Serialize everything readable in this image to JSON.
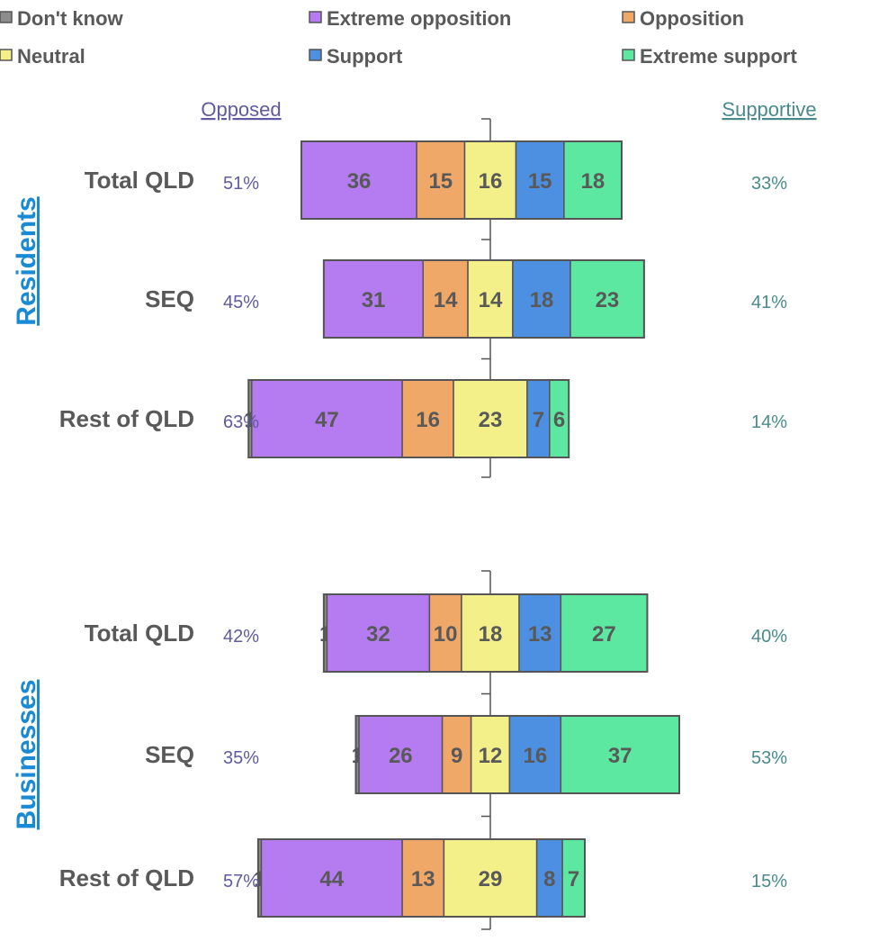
{
  "chart_data": {
    "type": "bar",
    "subtype": "diverging-stacked-horizontal",
    "legend": {
      "placement": "top",
      "entries": [
        {
          "key": "dont_know",
          "label": "Don't know",
          "color": "#8c8c8c"
        },
        {
          "key": "extreme_opposition",
          "label": "Extreme opposition",
          "color": "#b47cf0"
        },
        {
          "key": "opposition",
          "label": "Opposition",
          "color": "#f0a868"
        },
        {
          "key": "neutral",
          "label": "Neutral",
          "color": "#f3f08a"
        },
        {
          "key": "support",
          "label": "Support",
          "color": "#4d8fe0"
        },
        {
          "key": "extreme_support",
          "label": "Extreme support",
          "color": "#5ce8a0"
        }
      ]
    },
    "headers": {
      "opposed": "Opposed",
      "supportive": "Supportive"
    },
    "groups": [
      {
        "name": "Residents",
        "rows": [
          {
            "label": "Total QLD",
            "opposed_pct": "51%",
            "supportive_pct": "33%",
            "values": {
              "dont_know": 0,
              "extreme_opposition": 36,
              "opposition": 15,
              "neutral": 16,
              "support": 15,
              "extreme_support": 18
            },
            "value_labels": {
              "dont_know": "",
              "extreme_opposition": "36",
              "opposition": "15",
              "neutral": "16",
              "support": "15",
              "extreme_support": "18"
            }
          },
          {
            "label": "SEQ",
            "opposed_pct": "45%",
            "supportive_pct": "41%",
            "values": {
              "dont_know": 0,
              "extreme_opposition": 31,
              "opposition": 14,
              "neutral": 14,
              "support": 18,
              "extreme_support": 23
            },
            "value_labels": {
              "dont_know": "",
              "extreme_opposition": "31",
              "opposition": "14",
              "neutral": "14",
              "support": "18",
              "extreme_support": "23"
            }
          },
          {
            "label": "Rest of QLD",
            "opposed_pct": "63%",
            "supportive_pct": "14%",
            "values": {
              "dont_know": 1,
              "extreme_opposition": 47,
              "opposition": 16,
              "neutral": 23,
              "support": 7,
              "extreme_support": 6
            },
            "value_labels": {
              "dont_know": "1",
              "extreme_opposition": "47",
              "opposition": "16",
              "neutral": "23",
              "support": "7",
              "extreme_support": "6"
            }
          }
        ]
      },
      {
        "name": "Businesses",
        "rows": [
          {
            "label": "Total QLD",
            "opposed_pct": "42%",
            "supportive_pct": "40%",
            "values": {
              "dont_know": 1,
              "extreme_opposition": 32,
              "opposition": 10,
              "neutral": 18,
              "support": 13,
              "extreme_support": 27
            },
            "value_labels": {
              "dont_know": "1",
              "extreme_opposition": "32",
              "opposition": "10",
              "neutral": "18",
              "support": "13",
              "extreme_support": "27"
            }
          },
          {
            "label": "SEQ",
            "opposed_pct": "35%",
            "supportive_pct": "53%",
            "values": {
              "dont_know": 1,
              "extreme_opposition": 26,
              "opposition": 9,
              "neutral": 12,
              "support": 16,
              "extreme_support": 37
            },
            "value_labels": {
              "dont_know": "1",
              "extreme_opposition": "26",
              "opposition": "9",
              "neutral": "12",
              "support": "16",
              "extreme_support": "37"
            }
          },
          {
            "label": "Rest of QLD",
            "opposed_pct": "57%",
            "supportive_pct": "15%",
            "values": {
              "dont_know": 1,
              "extreme_opposition": 44,
              "opposition": 13,
              "neutral": 29,
              "support": 8,
              "extreme_support": 7
            },
            "value_labels": {
              "dont_know": "1",
              "extreme_opposition": "44",
              "opposition": "13",
              "neutral": "29",
              "support": "8",
              "extreme_support": "7"
            }
          }
        ]
      }
    ]
  }
}
